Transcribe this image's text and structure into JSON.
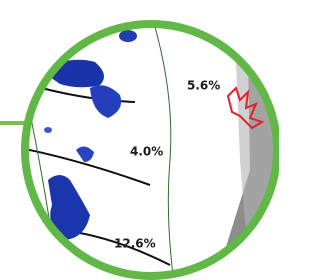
{
  "labels": [
    "5.6%",
    "4.0%",
    "12.6%"
  ]
}
